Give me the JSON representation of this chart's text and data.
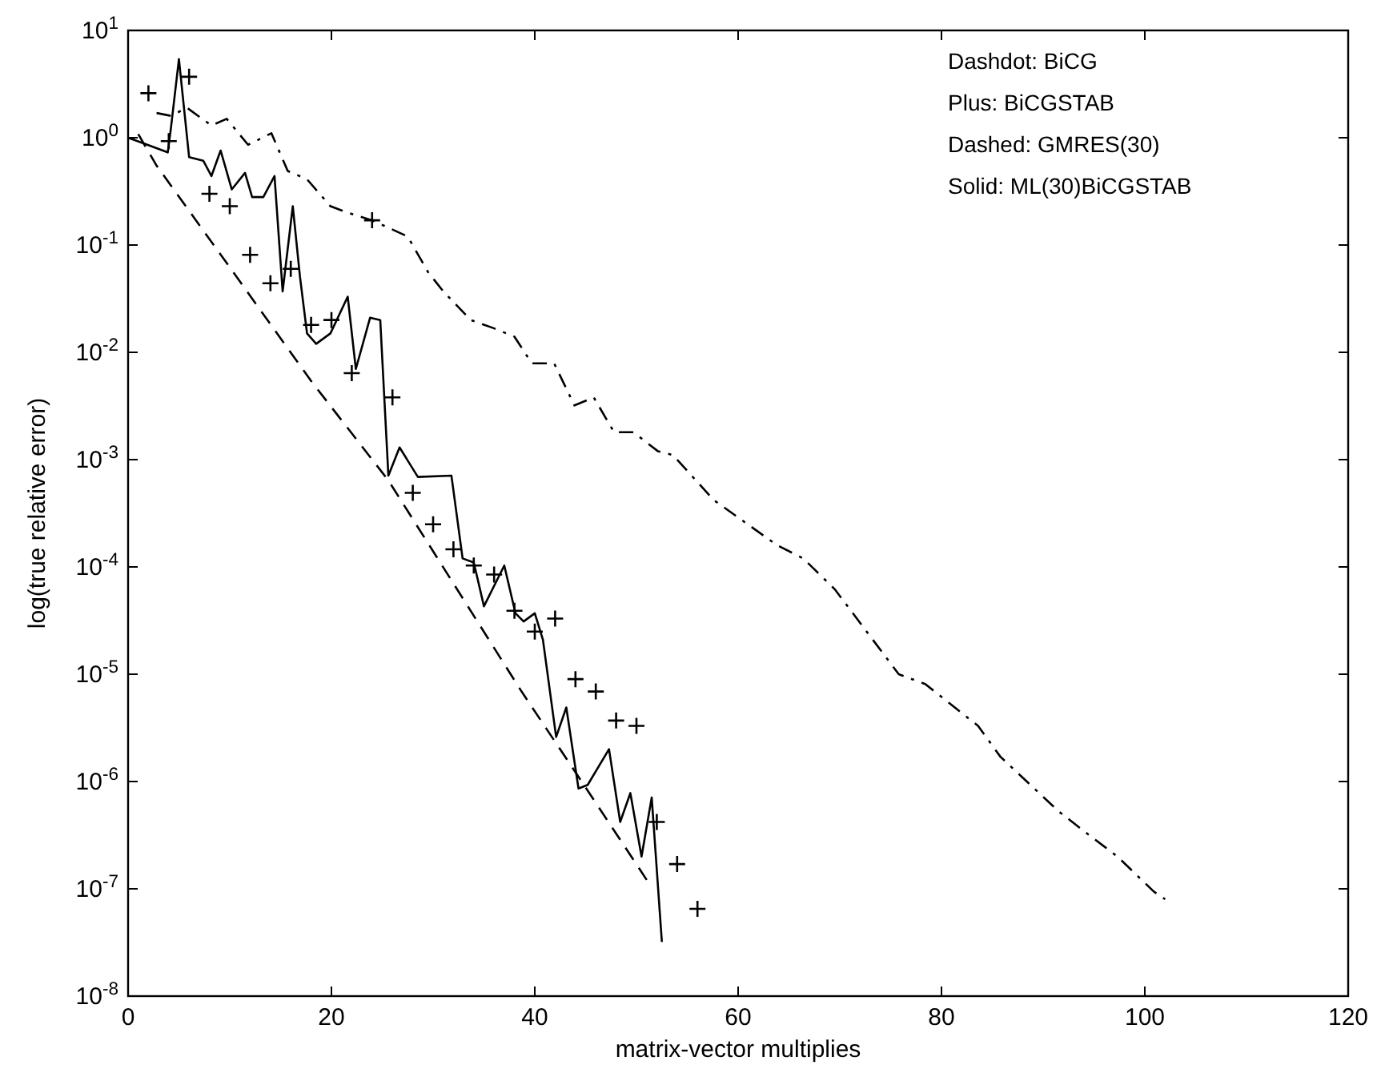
{
  "chart_data": {
    "type": "line",
    "xlabel": "matrix-vector multiplies",
    "ylabel": "log(true relative error)",
    "log": "y",
    "grid": false,
    "xlim": [
      0,
      120
    ],
    "xticks": [
      0,
      20,
      40,
      60,
      80,
      100,
      120
    ],
    "ylim": [
      1e-08,
      10
    ],
    "yticks": [
      {
        "value": 1e-08,
        "label": "10$^{-8}$"
      },
      {
        "value": 1e-07,
        "label": "10$^{-7}$"
      },
      {
        "value": 1e-06,
        "label": "10$^{-6}$"
      },
      {
        "value": 1e-05,
        "label": "10$^{-5}$"
      },
      {
        "value": 0.0001,
        "label": "10$^{-4}$"
      },
      {
        "value": 0.001,
        "label": "10$^{-3}$"
      },
      {
        "value": 0.01,
        "label": "10$^{-2}$"
      },
      {
        "value": 0.1,
        "label": "10$^{-1}$"
      },
      {
        "value": 1,
        "label": "10$^{0}$"
      },
      {
        "value": 10,
        "label": "10$^{1}$"
      }
    ],
    "annotations": [
      "Dashdot: BiCG",
      "Plus: BiCGSTAB",
      "Dashed: GMRES(30)",
      "Solid: ML(30)BiCGSTAB"
    ],
    "series": [
      {
        "line_style": "dashdot",
        "color": "#000000",
        "x": [
          2.8,
          4.2,
          5.8,
          8.2,
          9.7,
          11.8,
          14.1,
          15.7,
          17.6,
          19.9,
          21.6,
          24,
          27.5,
          29.5,
          31,
          33.7,
          35.8,
          38,
          39.7,
          41.9,
          43.9,
          45.8,
          47.8,
          49.7,
          52.1,
          53.6,
          57.6,
          63.8,
          66.4,
          69.5,
          75.8,
          78.4,
          83.6,
          85.8,
          91.5,
          94.1,
          97.3,
          100.9,
          102
        ],
        "values": [
          1.7,
          1.6,
          1.9,
          1.3,
          1.5,
          0.86,
          1.1,
          0.49,
          0.41,
          0.23,
          0.2,
          0.17,
          0.12,
          0.056,
          0.037,
          0.02,
          0.017,
          0.014,
          0.0079,
          0.0079,
          0.0032,
          0.0038,
          0.0018,
          0.0018,
          0.0012,
          0.0011,
          0.00042,
          0.00016,
          0.00012,
          6.2e-05,
          1e-05,
          8.1e-06,
          3.3e-06,
          1.7e-06,
          5.3e-07,
          3.4e-07,
          2e-07,
          9.4e-08,
          8e-08
        ]
      },
      {
        "type": "scatter",
        "marker": "cross",
        "color": "#000000",
        "x": [
          2,
          4,
          6,
          8,
          10,
          12,
          14,
          16,
          18,
          20,
          22,
          24,
          26,
          28,
          30,
          32,
          34,
          36,
          38,
          40,
          42,
          44,
          46,
          48,
          50,
          52,
          54,
          56
        ],
        "values": [
          2.6,
          0.93,
          3.7,
          0.3,
          0.23,
          0.081,
          0.044,
          0.06,
          0.018,
          0.02,
          0.0064,
          0.17,
          0.0038,
          0.00049,
          0.00025,
          0.000146,
          0.000103,
          8.5e-05,
          3.9e-05,
          2.5e-05,
          3.3e-05,
          9e-06,
          6.9e-06,
          3.7e-06,
          3.3e-06,
          4.2e-07,
          1.7e-07,
          6.5e-08
        ]
      },
      {
        "line_style": "dashed",
        "color": "#000000",
        "x": [
          1,
          2.8,
          10,
          18,
          25.6,
          32,
          38.7,
          45,
          51.3
        ],
        "values": [
          1.08,
          0.55,
          0.062,
          0.0054,
          0.00064,
          7e-05,
          6.9e-06,
          8.8e-07,
          1.1e-07
        ]
      },
      {
        "line_style": "solid",
        "color": "#000000",
        "x": [
          0,
          1.2,
          3.9,
          4.2,
          5,
          6,
          7.4,
          8.2,
          9.1,
          10.2,
          11.5,
          12.2,
          13.3,
          14.4,
          15.2,
          16.2,
          16.9,
          17.6,
          18.5,
          19.9,
          21.6,
          22.4,
          23.8,
          24.8,
          25.6,
          26.7,
          28.5,
          31.8,
          32.9,
          34,
          35,
          37,
          38.1,
          38.9,
          40,
          40.8,
          42.1,
          43.1,
          44.3,
          45.2,
          47.3,
          48.4,
          49.4,
          50.5,
          51.5,
          52.5
        ],
        "values": [
          1.0,
          0.91,
          0.73,
          1.2,
          5.4,
          0.66,
          0.61,
          0.44,
          0.76,
          0.33,
          0.47,
          0.28,
          0.28,
          0.44,
          0.037,
          0.23,
          0.051,
          0.015,
          0.012,
          0.015,
          0.033,
          0.007,
          0.021,
          0.02,
          0.00071,
          0.0013,
          0.00069,
          0.00071,
          0.00012,
          0.00011,
          4.3e-05,
          0.000103,
          3.7e-05,
          3.1e-05,
          3.7e-05,
          2.1e-05,
          2.6e-06,
          4.9e-06,
          8.6e-07,
          9.3e-07,
          2e-06,
          4.2e-07,
          7.8e-07,
          2e-07,
          7.1e-07,
          3.2e-08
        ]
      }
    ]
  }
}
